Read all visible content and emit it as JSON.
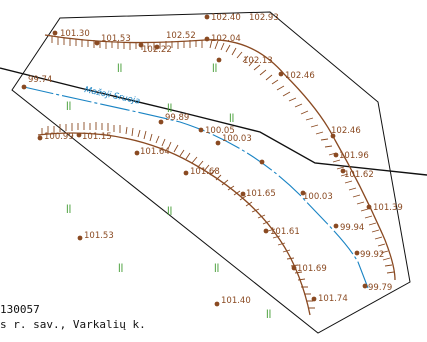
{
  "colors": {
    "contour": "#8a4a22",
    "river": "#1a84c4",
    "grass": "#3f9a2f",
    "boundary": "#111111",
    "background": "#ffffff"
  },
  "river": {
    "name": "Mažoji Sruoja"
  },
  "elevations": [
    "99.74",
    "101.30",
    "101.53",
    "102.52",
    "102.22",
    "102.40",
    "102.93",
    "102.04",
    "102.13",
    "102.46",
    "99.89",
    "100.99",
    "101.15",
    "101.64",
    "100.05",
    "100.03",
    "102.46",
    "101.96",
    "101.62",
    "101.68",
    "101.65",
    "100.03",
    "101.39",
    "99.94",
    "101.53",
    "101.61",
    "99.92",
    "101.69",
    "99.79",
    "101.74",
    "101.40"
  ],
  "grass_symbol": "ǀǀ",
  "caption": {
    "line1": "130057",
    "line2": "s r. sav., Varkalių k."
  }
}
